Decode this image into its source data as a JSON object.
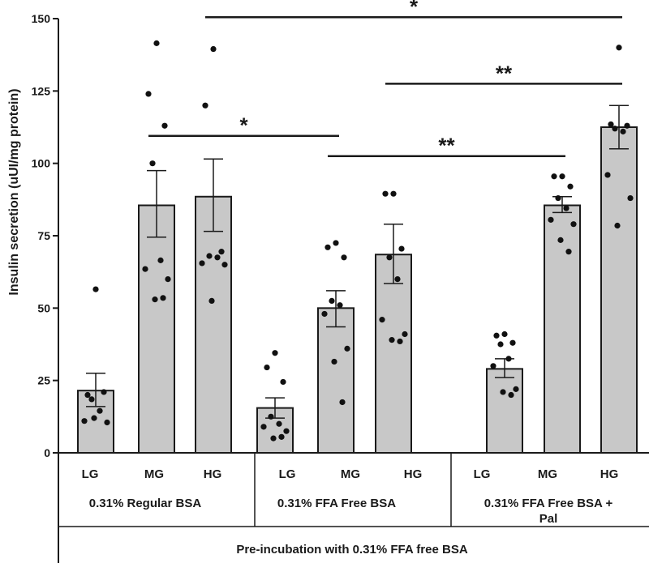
{
  "chart_data": {
    "type": "bar",
    "title": "",
    "ylabel": "Insulin secretion (uUI/mg protein)",
    "xlabel": "Pre-incubation with 0.31% FFA free BSA",
    "ylim": [
      0,
      150
    ],
    "yticks": [
      "0",
      "25",
      "50",
      "75",
      "100",
      "125",
      "150"
    ],
    "groups": [
      {
        "label_line1": "0.31% Regular BSA",
        "label_line2": ""
      },
      {
        "label_line1": "0.31% FFA Free BSA",
        "label_line2": ""
      },
      {
        "label_line1": "0.31% FFA Free BSA +",
        "label_line2": "Pal"
      }
    ],
    "bars": [
      {
        "category": "LG",
        "group": 0,
        "mean": 21.5,
        "err_lo": 16.0,
        "err_hi": 27.5,
        "points": [
          56.5,
          20.0,
          21.0,
          18.5,
          14.5,
          11.0,
          10.5,
          12.0
        ]
      },
      {
        "category": "MG",
        "group": 0,
        "mean": 85.5,
        "err_lo": 74.5,
        "err_hi": 97.5,
        "points": [
          141.5,
          124.0,
          113.0,
          100.0,
          66.5,
          63.5,
          60.0,
          53.0,
          53.5
        ]
      },
      {
        "category": "HG",
        "group": 0,
        "mean": 88.5,
        "err_lo": 76.5,
        "err_hi": 101.5,
        "points": [
          139.5,
          120.0,
          69.5,
          68.0,
          67.5,
          65.5,
          65.0,
          52.5
        ]
      },
      {
        "category": "LG",
        "group": 1,
        "mean": 15.5,
        "err_lo": 12.0,
        "err_hi": 19.0,
        "points": [
          34.5,
          29.5,
          24.5,
          12.5,
          10.0,
          9.0,
          7.5,
          5.0,
          5.5
        ]
      },
      {
        "category": "MG",
        "group": 1,
        "mean": 50.0,
        "err_lo": 43.5,
        "err_hi": 56.0,
        "points": [
          72.5,
          71.0,
          67.5,
          52.5,
          51.0,
          48.0,
          36.0,
          31.5,
          17.5
        ]
      },
      {
        "category": "HG",
        "group": 1,
        "mean": 68.5,
        "err_lo": 58.5,
        "err_hi": 79.0,
        "points": [
          89.5,
          89.5,
          70.5,
          67.5,
          60.0,
          46.0,
          41.0,
          39.0,
          38.5
        ]
      },
      {
        "category": "LG",
        "group": 2,
        "mean": 29.0,
        "err_lo": 26.0,
        "err_hi": 32.5,
        "points": [
          41.0,
          40.5,
          38.0,
          37.5,
          32.5,
          30.0,
          22.0,
          21.0,
          20.0
        ]
      },
      {
        "category": "MG",
        "group": 2,
        "mean": 85.5,
        "err_lo": 83.0,
        "err_hi": 88.5,
        "points": [
          95.5,
          95.5,
          92.0,
          88.0,
          84.5,
          80.5,
          79.0,
          73.5,
          69.5
        ]
      },
      {
        "category": "HG",
        "group": 2,
        "mean": 112.5,
        "err_lo": 105.0,
        "err_hi": 120.0,
        "points": [
          140.0,
          113.5,
          113.0,
          112.0,
          111.0,
          96.0,
          88.0,
          78.5
        ]
      }
    ],
    "significance": [
      {
        "from": 2,
        "to": 8,
        "y": 150.5,
        "label": "*"
      },
      {
        "from": 5,
        "to": 8,
        "y": 127.5,
        "label": "**"
      },
      {
        "from": 1,
        "to": 4,
        "y": 109.5,
        "label": "*"
      },
      {
        "from": 4,
        "to": 7,
        "y": 102.5,
        "label": "**"
      }
    ]
  }
}
